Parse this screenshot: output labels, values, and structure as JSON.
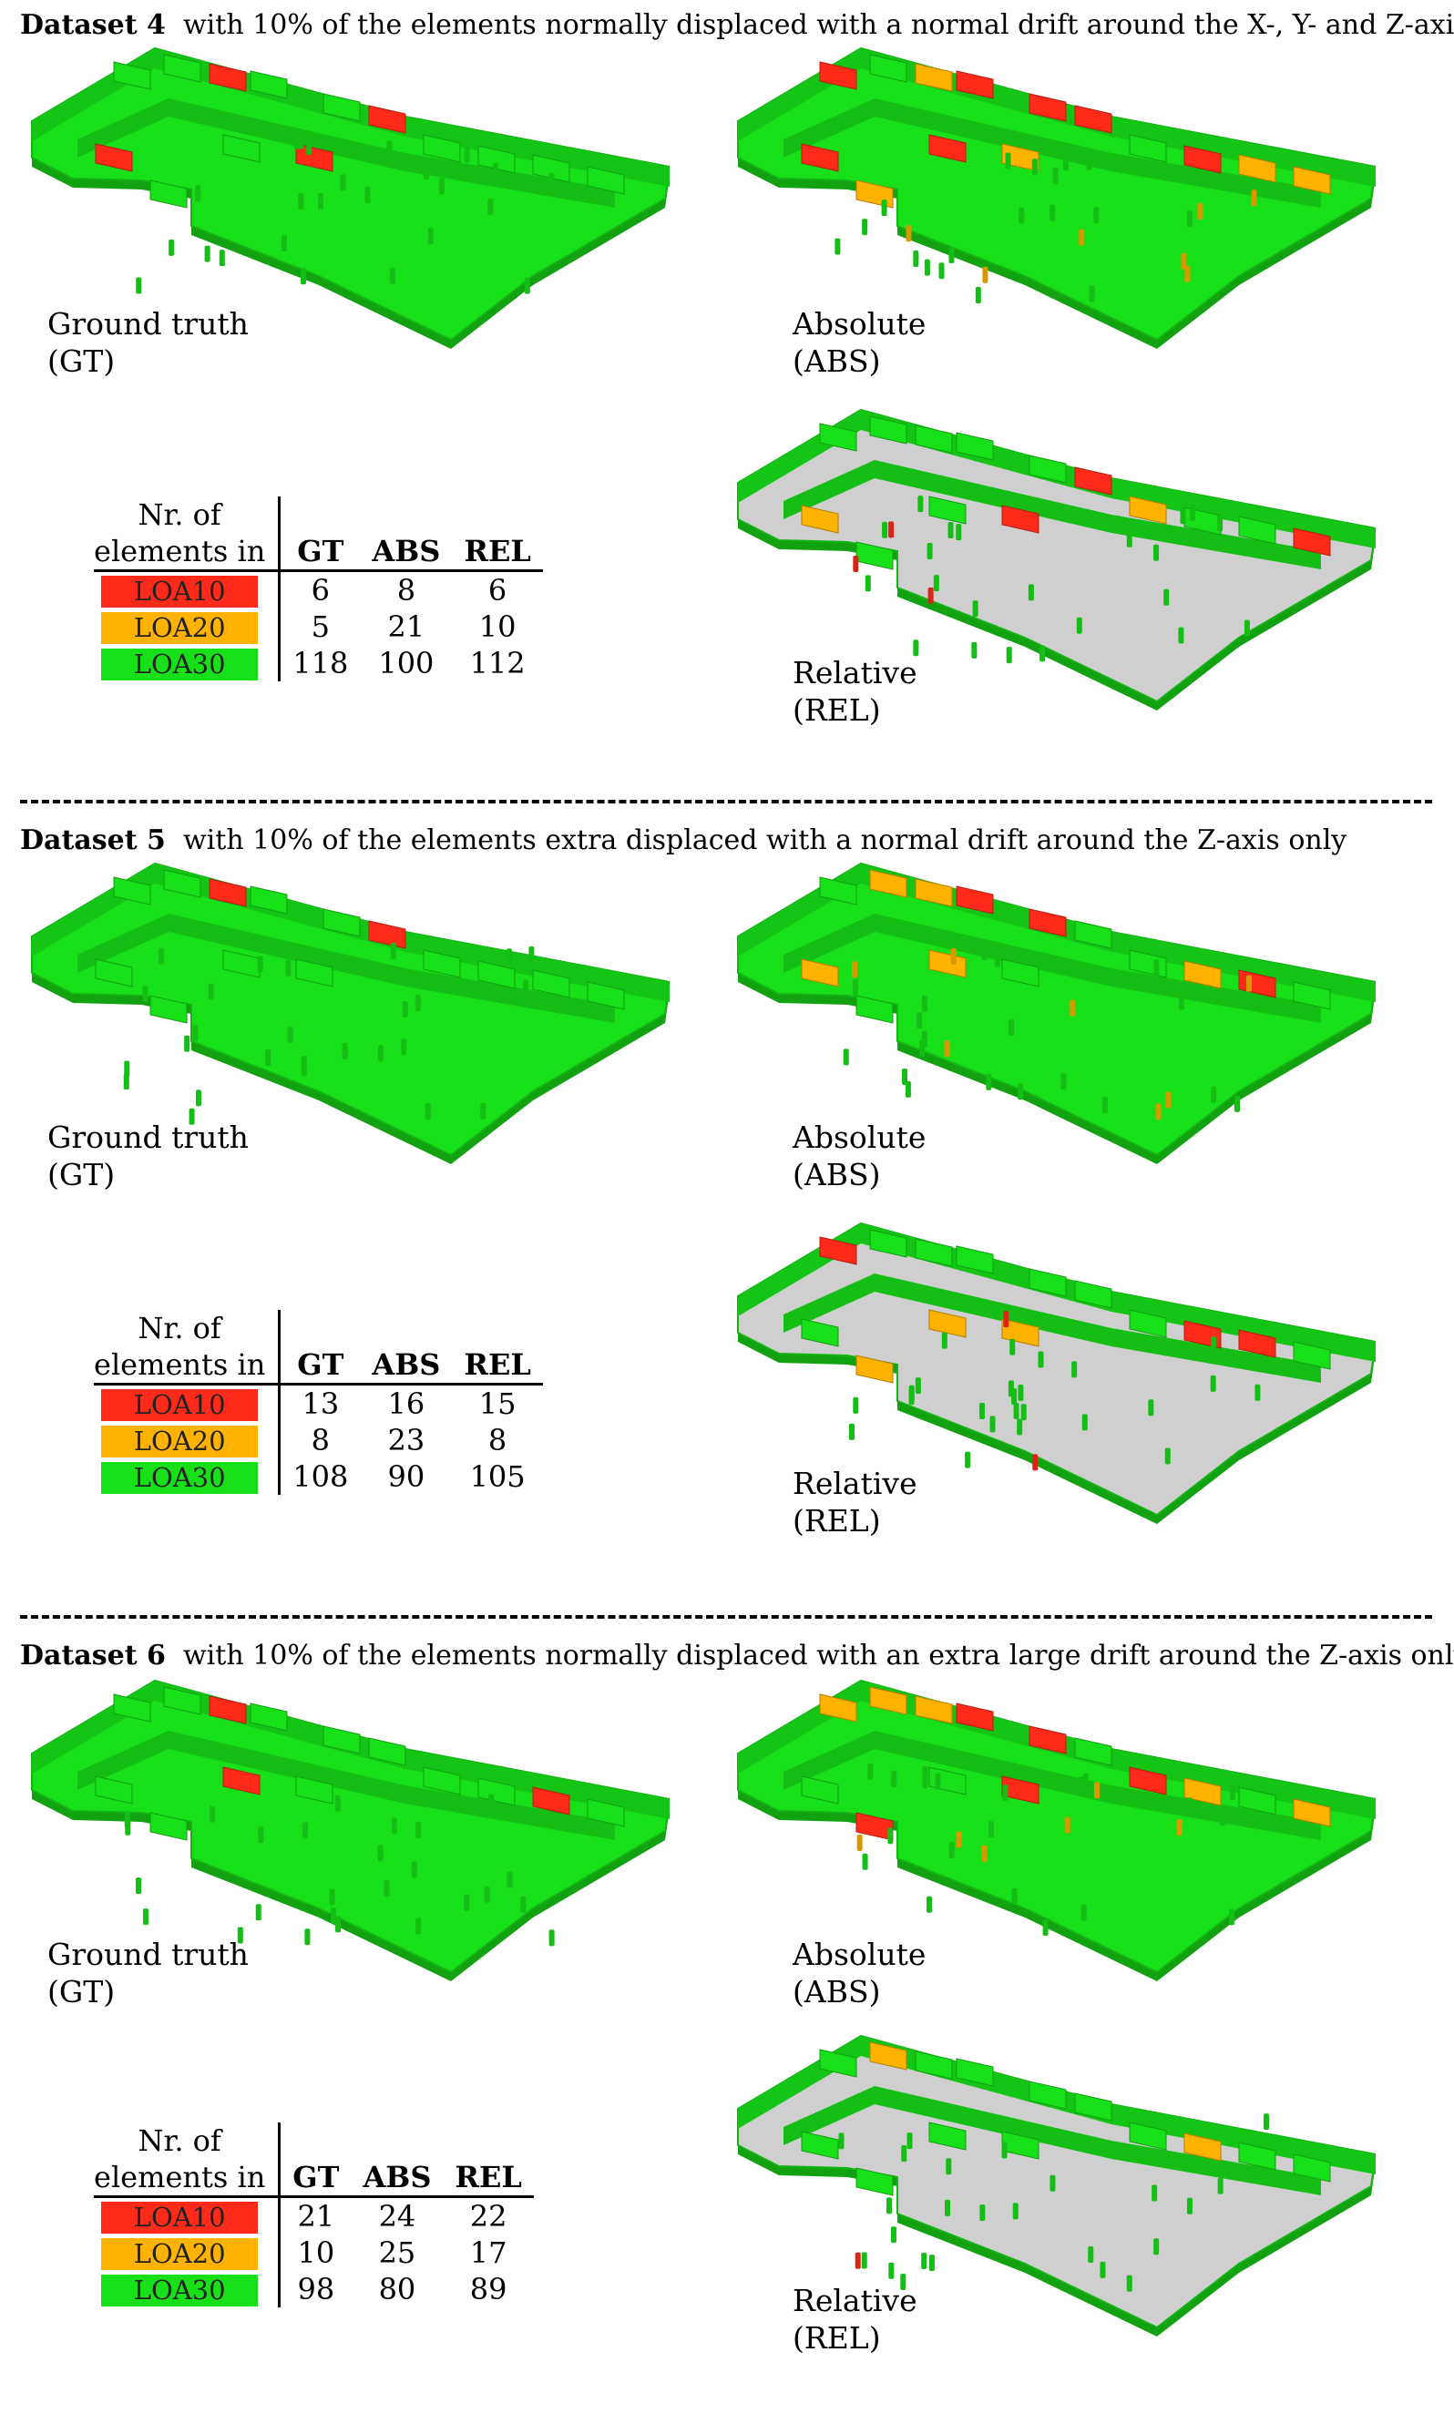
{
  "colors": {
    "loa10": "#ff2a1a",
    "loa20": "#ffb300",
    "loa30": "#18e018",
    "floor_gray": "#cfcfcf"
  },
  "table_header": {
    "row_label": "Nr. of elements in",
    "cols": [
      "GT",
      "ABS",
      "REL"
    ]
  },
  "loa_labels": [
    "LOA10",
    "LOA20",
    "LOA30"
  ],
  "captions": {
    "gt": [
      "Ground truth",
      "(GT)"
    ],
    "abs": [
      "Absolute",
      "(ABS)"
    ],
    "rel": [
      "Relative",
      "(REL)"
    ]
  },
  "datasets": [
    {
      "title": "Dataset 4",
      "description": "with 10% of the elements normally displaced with a normal drift around the X-, Y- and Z-axis",
      "rows": [
        [
          "6",
          "8",
          "6"
        ],
        [
          "5",
          "21",
          "10"
        ],
        [
          "118",
          "100",
          "112"
        ]
      ]
    },
    {
      "title": "Dataset 5",
      "description": "with 10% of the elements extra displaced with a normal drift around the Z-axis only",
      "rows": [
        [
          "13",
          "16",
          "15"
        ],
        [
          "8",
          "23",
          "8"
        ],
        [
          "108",
          "90",
          "105"
        ]
      ]
    },
    {
      "title": "Dataset 6",
      "description": "with 10% of the elements normally displaced with an extra large drift around the Z-axis only",
      "rows": [
        [
          "21",
          "24",
          "22"
        ],
        [
          "10",
          "25",
          "17"
        ],
        [
          "98",
          "80",
          "89"
        ]
      ]
    }
  ]
}
